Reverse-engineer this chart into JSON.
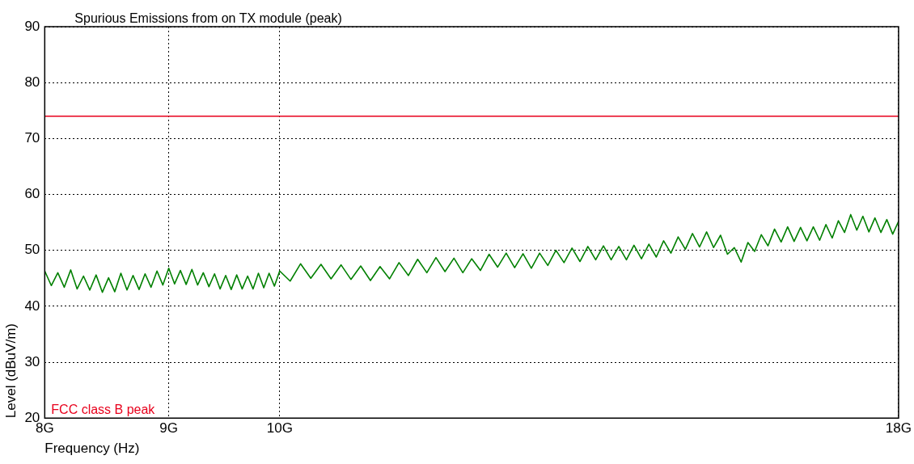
{
  "chart_data": {
    "type": "line",
    "title": "Spurious Emissions from on TX module (peak)",
    "xlabel": "Frequency (Hz)",
    "ylabel": "Level (dBuV/m)",
    "log": "x",
    "xlim": [
      8,
      18
    ],
    "xticks": [
      {
        "value": 8,
        "label": "8G"
      },
      {
        "value": 9,
        "label": "9G"
      },
      {
        "value": 10,
        "label": "10G"
      },
      {
        "value": 18,
        "label": "18G"
      }
    ],
    "ylim": [
      20,
      90
    ],
    "yticks": [
      20,
      30,
      40,
      50,
      60,
      70,
      80,
      90
    ],
    "grid": true,
    "legend": false,
    "marker": "none",
    "line_style": "solid",
    "ref_lines": [
      {
        "axis": "y",
        "value": 74,
        "label": "FCC class B peak",
        "color": "#e8001c"
      }
    ],
    "series": [
      {
        "color": "#008000",
        "x": [
          8.0,
          8.05,
          8.1,
          8.15,
          8.2,
          8.25,
          8.3,
          8.35,
          8.4,
          8.45,
          8.5,
          8.55,
          8.6,
          8.65,
          8.7,
          8.75,
          8.8,
          8.85,
          8.9,
          8.95,
          9.0,
          9.05,
          9.1,
          9.15,
          9.2,
          9.25,
          9.3,
          9.35,
          9.4,
          9.45,
          9.5,
          9.55,
          9.6,
          9.65,
          9.7,
          9.75,
          9.8,
          9.85,
          9.9,
          9.95,
          10.0,
          10.1,
          10.2,
          10.3,
          10.4,
          10.5,
          10.6,
          10.7,
          10.8,
          10.9,
          11.0,
          11.1,
          11.2,
          11.3,
          11.4,
          11.5,
          11.6,
          11.7,
          11.8,
          11.9,
          12.0,
          12.1,
          12.2,
          12.3,
          12.4,
          12.5,
          12.6,
          12.7,
          12.8,
          12.9,
          13.0,
          13.1,
          13.2,
          13.3,
          13.4,
          13.5,
          13.6,
          13.7,
          13.8,
          13.9,
          14.0,
          14.1,
          14.2,
          14.3,
          14.4,
          14.5,
          14.6,
          14.7,
          14.8,
          14.9,
          15.0,
          15.1,
          15.2,
          15.3,
          15.4,
          15.5,
          15.6,
          15.7,
          15.8,
          15.9,
          16.0,
          16.1,
          16.2,
          16.3,
          16.4,
          16.5,
          16.6,
          16.7,
          16.8,
          16.9,
          17.0,
          17.1,
          17.2,
          17.3,
          17.4,
          17.5,
          17.6,
          17.7,
          17.8,
          17.9,
          18.0
        ],
        "values": [
          46.3,
          43.7,
          46.0,
          43.4,
          46.5,
          43.1,
          45.4,
          42.9,
          45.6,
          42.5,
          45.1,
          42.6,
          45.9,
          42.9,
          45.5,
          43.0,
          45.8,
          43.4,
          46.3,
          43.8,
          46.8,
          44.0,
          46.4,
          43.9,
          46.6,
          43.8,
          46.0,
          43.5,
          45.8,
          43.1,
          45.5,
          43.0,
          45.6,
          43.1,
          45.4,
          43.1,
          45.9,
          43.3,
          45.9,
          43.6,
          46.3,
          44.5,
          47.6,
          45.0,
          47.5,
          44.9,
          47.4,
          44.8,
          47.2,
          44.6,
          47.1,
          44.9,
          47.8,
          45.5,
          48.4,
          46.0,
          48.7,
          46.2,
          48.6,
          46.0,
          48.5,
          46.4,
          49.3,
          47.0,
          49.5,
          46.9,
          49.4,
          46.8,
          49.5,
          47.3,
          50.0,
          47.8,
          50.4,
          48.0,
          50.7,
          48.3,
          50.8,
          48.3,
          50.7,
          48.3,
          50.9,
          48.5,
          51.1,
          48.8,
          51.7,
          49.5,
          52.4,
          50.2,
          53.0,
          50.6,
          53.3,
          50.5,
          52.7,
          49.3,
          50.5,
          47.9,
          51.4,
          49.8,
          52.8,
          50.8,
          53.8,
          51.5,
          54.2,
          51.6,
          54.1,
          51.7,
          54.2,
          51.8,
          54.6,
          52.2,
          55.3,
          53.2,
          56.4,
          53.6,
          56.1,
          53.3,
          55.8,
          53.2,
          55.5,
          52.9,
          55.2
        ]
      }
    ]
  }
}
